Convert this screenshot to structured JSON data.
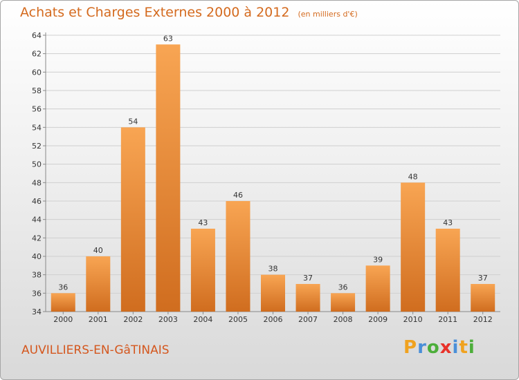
{
  "chart_data": {
    "type": "bar",
    "title": "Achats et Charges Externes 2000 à 2012",
    "unit": "(en milliers d'€)",
    "categories": [
      "2000",
      "2001",
      "2002",
      "2003",
      "2004",
      "2005",
      "2006",
      "2007",
      "2008",
      "2009",
      "2010",
      "2011",
      "2012"
    ],
    "values": [
      36,
      40,
      54,
      63,
      43,
      46,
      38,
      37,
      36,
      39,
      48,
      43,
      37
    ],
    "ylim": [
      34,
      64
    ],
    "yticks": [
      34,
      36,
      38,
      40,
      42,
      44,
      46,
      48,
      50,
      52,
      54,
      56,
      58,
      60,
      62,
      64
    ],
    "grid": true,
    "bar_color_light": "#f8a553",
    "bar_color_dark": "#d06d1f"
  },
  "commune": "AUVILLIERS-EN-GâTINAIS",
  "logo": {
    "letters": [
      "P",
      "r",
      "o",
      "x",
      "i",
      "t",
      "i"
    ],
    "colors": [
      "#f0a21f",
      "#4a8fd8",
      "#4cae3a",
      "#e8322a",
      "#4a8fd8",
      "#f0a21f",
      "#4cae3a"
    ]
  }
}
